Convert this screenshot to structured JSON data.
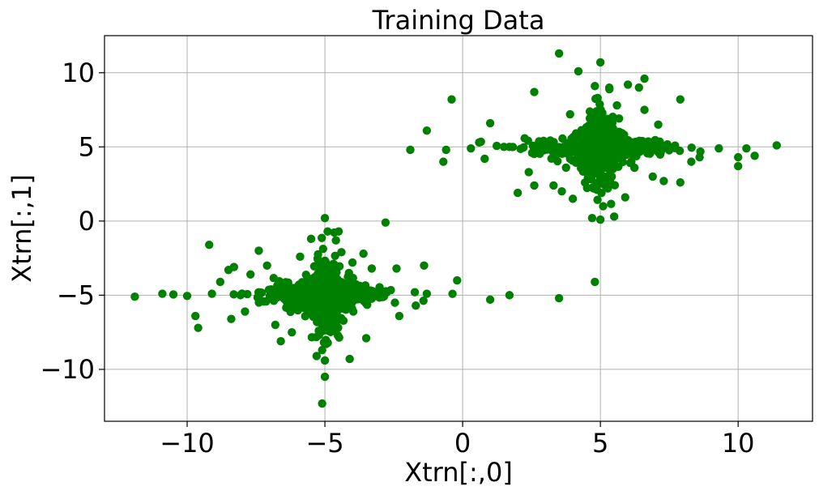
{
  "chart_data": {
    "type": "scatter",
    "title": "Training Data",
    "xlabel": "Xtrn[:,0]",
    "ylabel": "Xtrn[:,1]",
    "xlim": [
      -13,
      12.7
    ],
    "ylim": [
      -13.5,
      12.5
    ],
    "xticks": [
      -10,
      -5,
      0,
      5,
      10
    ],
    "xtick_labels": [
      "−10",
      "−5",
      "0",
      "5",
      "10"
    ],
    "yticks": [
      -10,
      -5,
      0,
      5,
      10
    ],
    "ytick_labels": [
      "−10",
      "−5",
      "0",
      "5",
      "10"
    ],
    "grid": true,
    "color": "#008000",
    "series": [
      {
        "clusters": [
          {
            "center": [
              5.0,
              5.0
            ],
            "count": 900
          },
          {
            "center": [
              -5.0,
              -5.0
            ],
            "count": 900
          }
        ],
        "points": [
          [
            -11.9,
            -5.1
          ],
          [
            -10.9,
            -4.9
          ],
          [
            -10.5,
            -4.95
          ],
          [
            -10.0,
            -5.05
          ],
          [
            -9.7,
            -6.4
          ],
          [
            -9.6,
            -7.2
          ],
          [
            -9.2,
            -1.6
          ],
          [
            -9.1,
            -4.9
          ],
          [
            -8.8,
            -4.1
          ],
          [
            -8.5,
            -3.3
          ],
          [
            -8.4,
            -6.6
          ],
          [
            -8.3,
            -3.1
          ],
          [
            -7.9,
            -6.1
          ],
          [
            -7.7,
            -3.6
          ],
          [
            -7.4,
            -2.0
          ],
          [
            -7.1,
            -3.0
          ],
          [
            -6.8,
            -7.0
          ],
          [
            -6.6,
            -8.1
          ],
          [
            -6.2,
            -7.5
          ],
          [
            -5.9,
            -2.4
          ],
          [
            -5.5,
            -1.2
          ],
          [
            -5.3,
            -9.1
          ],
          [
            -5.1,
            -8.7
          ],
          [
            -5.0,
            -9.4
          ],
          [
            -5.0,
            0.2
          ],
          [
            -5.0,
            -10.5
          ],
          [
            -5.1,
            -12.3
          ],
          [
            -4.9,
            -0.7
          ],
          [
            -4.6,
            -1.3
          ],
          [
            -4.5,
            -0.7
          ],
          [
            -4.4,
            -2.1
          ],
          [
            -4.1,
            -9.3
          ],
          [
            -4.0,
            -2.8
          ],
          [
            -3.6,
            -2.2
          ],
          [
            -3.5,
            -7.9
          ],
          [
            -3.3,
            -3.2
          ],
          [
            -2.8,
            -0.1
          ],
          [
            -2.4,
            -3.2
          ],
          [
            -2.3,
            -6.4
          ],
          [
            -1.7,
            -5.7
          ],
          [
            -1.4,
            -3.0
          ],
          [
            -1.3,
            -4.9
          ],
          [
            -0.2,
            -4.0
          ],
          [
            0.3,
            4.9
          ],
          [
            0.6,
            5.3
          ],
          [
            0.8,
            4.2
          ],
          [
            1.0,
            6.6
          ],
          [
            1.5,
            5.0
          ],
          [
            1.7,
            5.0
          ],
          [
            2.0,
            1.9
          ],
          [
            2.4,
            3.3
          ],
          [
            2.6,
            2.4
          ],
          [
            2.6,
            8.7
          ],
          [
            3.3,
            2.4
          ],
          [
            3.5,
            11.3
          ],
          [
            3.6,
            2.0
          ],
          [
            3.9,
            7.2
          ],
          [
            4.0,
            1.5
          ],
          [
            4.2,
            10.1
          ],
          [
            4.5,
            3.6
          ],
          [
            4.7,
            0.2
          ],
          [
            4.8,
            9.1
          ],
          [
            4.9,
            8.3
          ],
          [
            5.0,
            10.7
          ],
          [
            5.0,
            0.1
          ],
          [
            5.1,
            1.0
          ],
          [
            5.5,
            0.3
          ],
          [
            5.6,
            7.8
          ],
          [
            5.9,
            1.6
          ],
          [
            6.0,
            9.2
          ],
          [
            6.4,
            9.0
          ],
          [
            6.6,
            9.6
          ],
          [
            6.6,
            7.5
          ],
          [
            6.9,
            3.0
          ],
          [
            7.1,
            6.5
          ],
          [
            7.3,
            2.7
          ],
          [
            7.9,
            8.2
          ],
          [
            7.9,
            2.6
          ],
          [
            8.3,
            4.0
          ],
          [
            8.6,
            4.3
          ],
          [
            9.3,
            4.9
          ],
          [
            10.0,
            3.7
          ],
          [
            10.0,
            4.3
          ],
          [
            10.3,
            4.9
          ],
          [
            10.6,
            4.4
          ],
          [
            11.4,
            5.1
          ],
          [
            -0.4,
            8.2
          ],
          [
            -0.6,
            4.8
          ],
          [
            -0.7,
            4.0
          ],
          [
            -1.3,
            6.1
          ],
          [
            -1.9,
            4.8
          ],
          [
            1.0,
            -5.3
          ],
          [
            1.7,
            -5.0
          ],
          [
            3.5,
            -5.2
          ],
          [
            4.8,
            -4.1
          ]
        ]
      }
    ]
  }
}
